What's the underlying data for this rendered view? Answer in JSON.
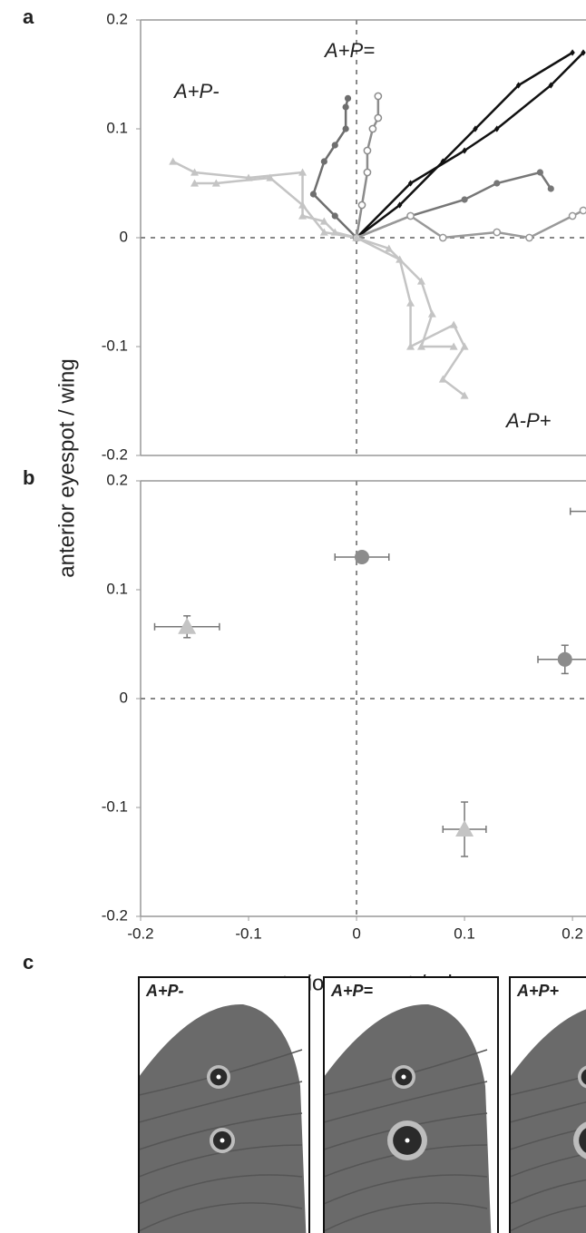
{
  "figure": {
    "ylabel": "anterior eyespot / wing"
  },
  "chart_data": [
    {
      "type": "line",
      "panel": "a",
      "annotations": [
        "A+P-",
        "A+P=",
        "A-P+"
      ],
      "xlim": [
        -0.2,
        0.21
      ],
      "ylim": [
        -0.2,
        0.2
      ],
      "yticks": [
        -0.2,
        -0.1,
        0,
        0.1,
        0.2
      ],
      "zero_lines": true,
      "series": [
        {
          "color": "#c4c4c4",
          "marker": "triangle",
          "x": [
            0,
            -0.02,
            -0.03,
            -0.05,
            -0.05,
            -0.1,
            -0.15,
            -0.17
          ],
          "values": [
            0,
            0.005,
            0.015,
            0.02,
            0.06,
            0.055,
            0.06,
            0.07
          ]
        },
        {
          "color": "#c4c4c4",
          "marker": "triangle",
          "x": [
            0,
            -0.03,
            -0.05,
            -0.08,
            -0.13,
            -0.15
          ],
          "values": [
            0,
            0.005,
            0.03,
            0.055,
            0.05,
            0.05
          ]
        },
        {
          "color": "#6e6e6e",
          "marker": "circle",
          "x": [
            0,
            -0.02,
            -0.04,
            -0.03,
            -0.02,
            -0.01,
            -0.01,
            -0.008
          ],
          "values": [
            0,
            0.02,
            0.04,
            0.07,
            0.085,
            0.1,
            0.12,
            0.128
          ]
        },
        {
          "color": "#8c8c8c",
          "marker": "open-circle",
          "x": [
            0,
            0.005,
            0.01,
            0.01,
            0.015,
            0.02,
            0.02
          ],
          "values": [
            0,
            0.03,
            0.06,
            0.08,
            0.1,
            0.11,
            0.13
          ]
        },
        {
          "color": "#111111",
          "marker": "diamond",
          "x": [
            0,
            0.04,
            0.08,
            0.11,
            0.15,
            0.2
          ],
          "values": [
            0,
            0.03,
            0.07,
            0.1,
            0.14,
            0.17
          ]
        },
        {
          "color": "#111111",
          "marker": "diamond",
          "x": [
            0,
            0.05,
            0.1,
            0.13,
            0.18,
            0.21
          ],
          "values": [
            0,
            0.05,
            0.08,
            0.1,
            0.14,
            0.17
          ]
        },
        {
          "color": "#777777",
          "marker": "circle",
          "x": [
            0,
            0.05,
            0.1,
            0.13,
            0.17,
            0.18
          ],
          "values": [
            0,
            0.02,
            0.035,
            0.05,
            0.06,
            0.045
          ]
        },
        {
          "color": "#999999",
          "marker": "open-circle",
          "x": [
            0,
            0.05,
            0.08,
            0.13,
            0.16,
            0.2,
            0.21
          ],
          "values": [
            0,
            0.02,
            0,
            0.005,
            0,
            0.02,
            0.025
          ]
        },
        {
          "color": "#c4c4c4",
          "marker": "triangle",
          "x": [
            0,
            0.04,
            0.05,
            0.05,
            0.09,
            0.1,
            0.08,
            0.1
          ],
          "values": [
            0,
            -0.02,
            -0.06,
            -0.1,
            -0.08,
            -0.1,
            -0.13,
            -0.145
          ]
        },
        {
          "color": "#c4c4c4",
          "marker": "triangle",
          "x": [
            0,
            0.03,
            0.06,
            0.07,
            0.06,
            0.09
          ],
          "values": [
            0,
            -0.01,
            -0.04,
            -0.07,
            -0.1,
            -0.1
          ]
        }
      ]
    },
    {
      "type": "errorbar",
      "panel": "b",
      "xlabel": "posterior eyespot / wing",
      "xlim": [
        -0.2,
        0.21
      ],
      "ylim": [
        -0.2,
        0.2
      ],
      "xticks": [
        -0.2,
        -0.1,
        0,
        0.1,
        0.2
      ],
      "yticks": [
        -0.2,
        -0.1,
        0,
        0.1,
        0.2
      ],
      "zero_lines": true,
      "series": [
        {
          "color": "#c4c4c4",
          "marker": "triangle",
          "x": [
            -0.157
          ],
          "values": [
            0.066
          ],
          "xerr": [
            0.03
          ],
          "yerr": [
            0.01
          ]
        },
        {
          "color": "#8c8c8c",
          "marker": "circle",
          "x": [
            0.005
          ],
          "values": [
            0.13
          ],
          "xerr": [
            0.025
          ],
          "yerr": [
            0.005
          ]
        },
        {
          "color": "#8c8c8c",
          "marker": "circle",
          "x": [
            0.193
          ],
          "values": [
            0.036
          ],
          "xerr": [
            0.025
          ],
          "yerr": [
            0.013
          ]
        },
        {
          "color": "#c4c4c4",
          "marker": "triangle",
          "x": [
            0.1
          ],
          "values": [
            -0.12
          ],
          "xerr": [
            0.02
          ],
          "yerr": [
            0.025
          ]
        },
        {
          "color": "#111111",
          "marker": "circle",
          "x": [
            0.22
          ],
          "values": [
            0.172
          ],
          "xerr": [
            0.022
          ],
          "yerr": [
            0.004
          ]
        }
      ]
    }
  ],
  "panel_c": {
    "label": "c",
    "images": [
      {
        "label": "A+P-"
      },
      {
        "label": "A+P="
      },
      {
        "label": "A+P+"
      }
    ]
  }
}
